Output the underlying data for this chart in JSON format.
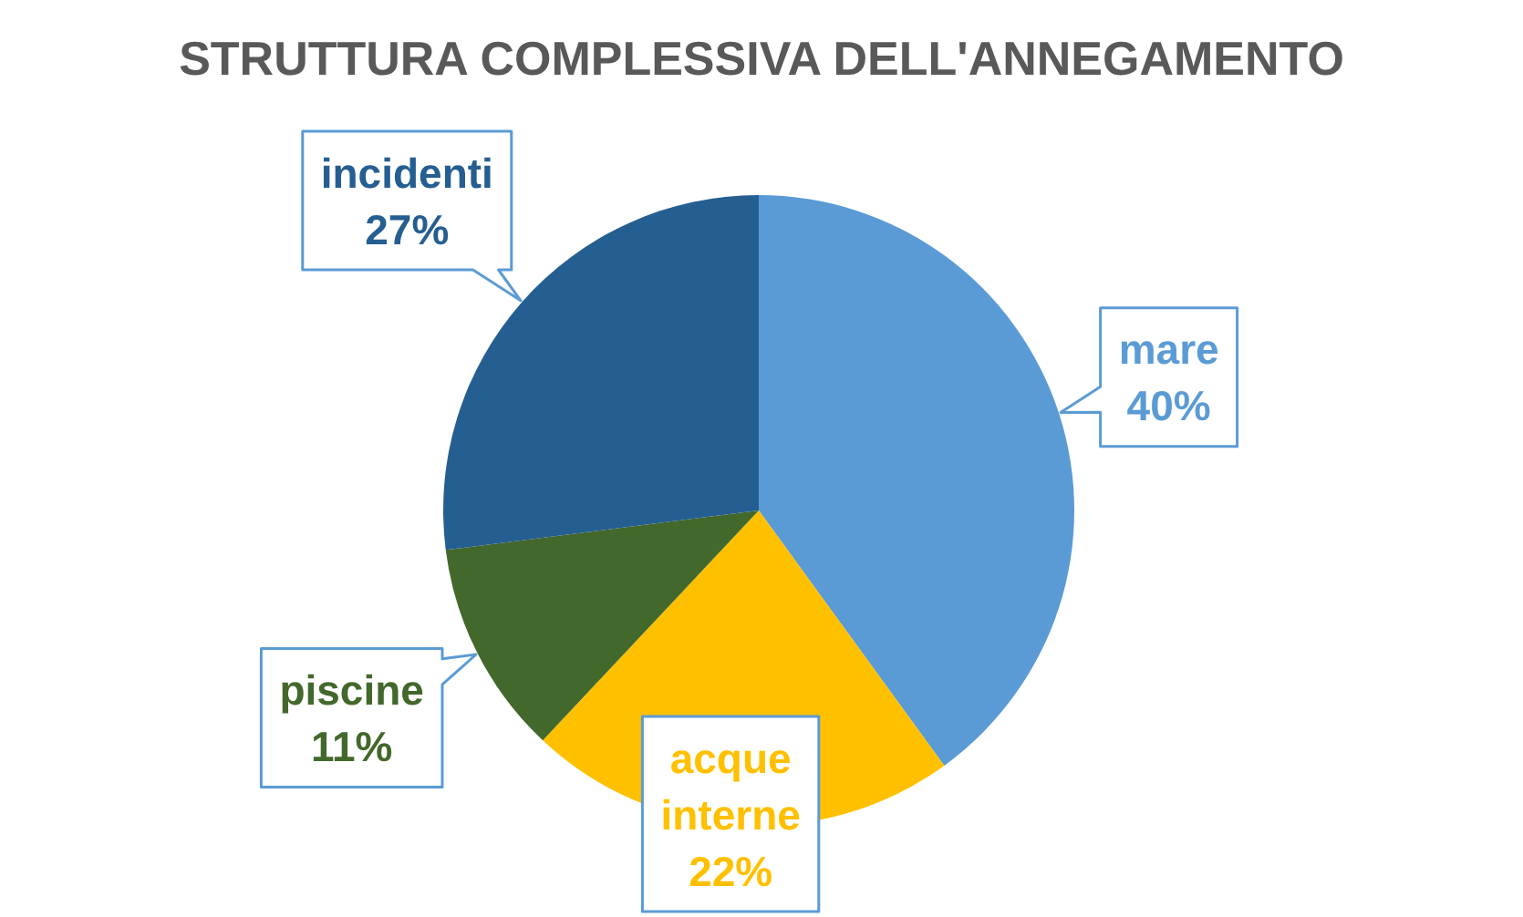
{
  "chart_data": {
    "type": "pie",
    "title": "STRUTTURA COMPLESSIVA DELL'ANNEGAMENTO",
    "categories": [
      "mare",
      "acque interne",
      "piscine",
      "incidenti"
    ],
    "values": [
      40,
      22,
      11,
      27
    ],
    "value_labels": [
      "40%",
      "22%",
      "11%",
      "27%"
    ],
    "colors": [
      "#5b9bd5",
      "#ffc000",
      "#43682b",
      "#255e91"
    ]
  }
}
